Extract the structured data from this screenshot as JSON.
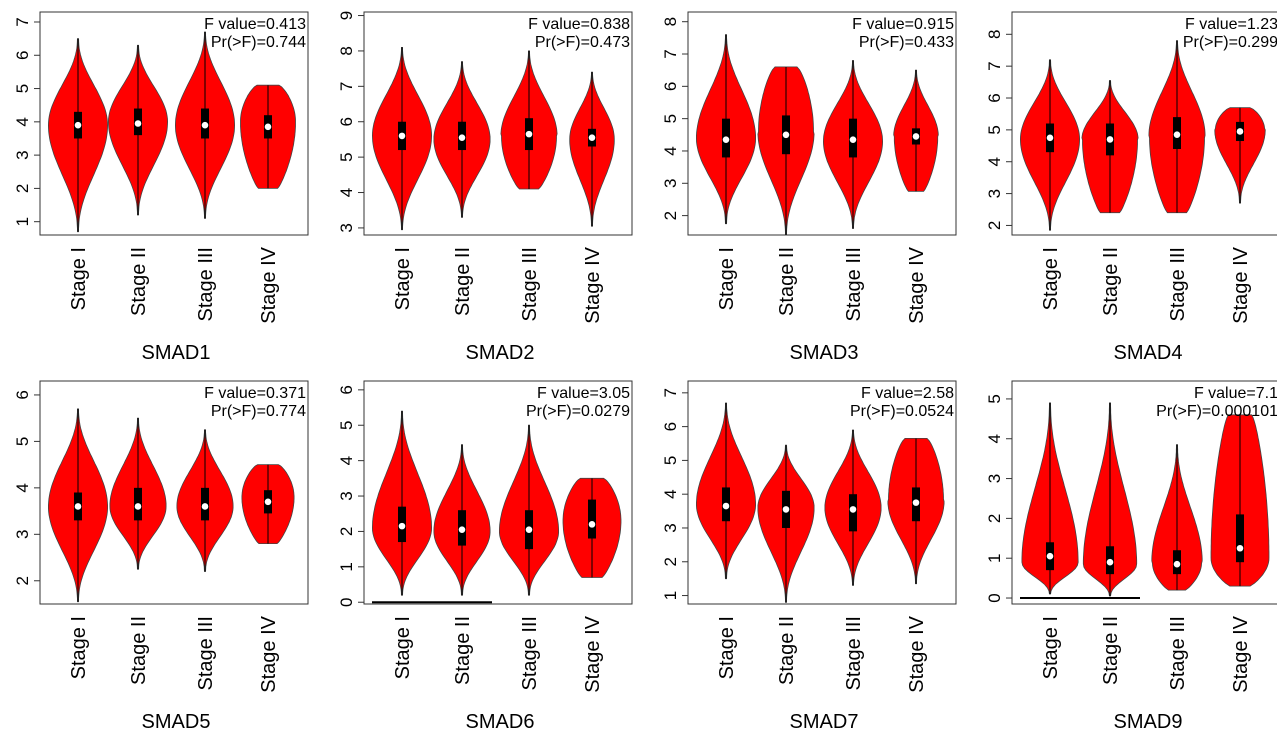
{
  "figure": {
    "panel_count": 8
  },
  "colors": {
    "violin_fill": "#ff0000",
    "violin_stroke": "#444444",
    "box": "#000000",
    "median": "#ffffff",
    "frame": "#333333"
  },
  "chart_data": [
    {
      "type": "violin",
      "title": "SMAD1",
      "categories": [
        "Stage I",
        "Stage II",
        "Stage III",
        "Stage IV"
      ],
      "ylim": [
        0.6,
        7.3
      ],
      "yticks": [
        1,
        2,
        3,
        4,
        5,
        6,
        7
      ],
      "stats": [
        "F value=0.413",
        "Pr(>F)=0.744"
      ],
      "series": [
        {
          "min": 0.7,
          "q1": 3.5,
          "median": 3.9,
          "q3": 4.3,
          "max": 6.5,
          "mode": 3.9,
          "peak": 1.0
        },
        {
          "min": 1.2,
          "q1": 3.6,
          "median": 3.95,
          "q3": 4.4,
          "max": 6.3,
          "mode": 4.0,
          "peak": 1.0
        },
        {
          "min": 1.1,
          "q1": 3.5,
          "median": 3.9,
          "q3": 4.4,
          "max": 6.7,
          "mode": 3.9,
          "peak": 1.0
        },
        {
          "min": 2.0,
          "q1": 3.5,
          "median": 3.85,
          "q3": 4.2,
          "max": 5.1,
          "mode": 4.0,
          "peak": 0.95,
          "flat_top": true,
          "flat_bottom": true
        }
      ]
    },
    {
      "type": "violin",
      "title": "SMAD2",
      "categories": [
        "Stage I",
        "Stage II",
        "Stage III",
        "Stage IV"
      ],
      "ylim": [
        2.8,
        9.1
      ],
      "yticks": [
        3,
        4,
        5,
        6,
        7,
        8,
        9
      ],
      "stats": [
        "F value=0.838",
        "Pr(>F)=0.473"
      ],
      "series": [
        {
          "min": 2.95,
          "q1": 5.2,
          "median": 5.6,
          "q3": 6.0,
          "max": 8.1,
          "mode": 5.6,
          "peak": 1.0
        },
        {
          "min": 3.3,
          "q1": 5.2,
          "median": 5.55,
          "q3": 6.0,
          "max": 7.7,
          "mode": 5.5,
          "peak": 0.95
        },
        {
          "min": 4.1,
          "q1": 5.2,
          "median": 5.65,
          "q3": 6.1,
          "max": 8.0,
          "mode": 5.6,
          "peak": 0.95,
          "flat_bottom": true
        },
        {
          "min": 3.05,
          "q1": 5.3,
          "median": 5.55,
          "q3": 5.8,
          "max": 7.4,
          "mode": 5.5,
          "peak": 0.75
        }
      ]
    },
    {
      "type": "violin",
      "title": "SMAD3",
      "categories": [
        "Stage I",
        "Stage II",
        "Stage III",
        "Stage IV"
      ],
      "ylim": [
        1.4,
        8.3
      ],
      "yticks": [
        2,
        3,
        4,
        5,
        6,
        7,
        8
      ],
      "stats": [
        "F value=0.915",
        "Pr(>F)=0.433"
      ],
      "series": [
        {
          "min": 1.75,
          "q1": 3.8,
          "median": 4.35,
          "q3": 5.0,
          "max": 7.6,
          "mode": 4.4,
          "peak": 1.0
        },
        {
          "min": 1.4,
          "q1": 3.9,
          "median": 4.5,
          "q3": 5.1,
          "max": 6.6,
          "mode": 4.6,
          "peak": 0.95,
          "flat_top": true
        },
        {
          "min": 1.6,
          "q1": 3.8,
          "median": 4.35,
          "q3": 5.0,
          "max": 6.8,
          "mode": 4.3,
          "peak": 1.0
        },
        {
          "min": 2.75,
          "q1": 4.2,
          "median": 4.45,
          "q3": 4.7,
          "max": 6.5,
          "mode": 4.45,
          "peak": 0.75,
          "flat_bottom": true
        }
      ]
    },
    {
      "type": "violin",
      "title": "SMAD4",
      "categories": [
        "Stage I",
        "Stage II",
        "Stage III",
        "Stage IV"
      ],
      "ylim": [
        1.7,
        8.7
      ],
      "yticks": [
        2,
        3,
        4,
        5,
        6,
        7,
        8
      ],
      "stats": [
        "F value=1.23",
        "Pr(>F)=0.299"
      ],
      "series": [
        {
          "min": 1.85,
          "q1": 4.3,
          "median": 4.75,
          "q3": 5.2,
          "max": 7.2,
          "mode": 4.7,
          "peak": 1.0
        },
        {
          "min": 2.4,
          "q1": 4.2,
          "median": 4.7,
          "q3": 5.2,
          "max": 6.55,
          "mode": 4.7,
          "peak": 0.95,
          "flat_bottom": true
        },
        {
          "min": 2.4,
          "q1": 4.4,
          "median": 4.85,
          "q3": 5.4,
          "max": 7.8,
          "mode": 4.8,
          "peak": 0.95,
          "flat_bottom": true
        },
        {
          "min": 2.7,
          "q1": 4.65,
          "median": 4.95,
          "q3": 5.25,
          "max": 5.7,
          "mode": 5.0,
          "peak": 0.85,
          "flat_top": true
        }
      ]
    },
    {
      "type": "violin",
      "title": "SMAD5",
      "categories": [
        "Stage I",
        "Stage II",
        "Stage III",
        "Stage IV"
      ],
      "ylim": [
        1.5,
        6.3
      ],
      "yticks": [
        2,
        3,
        4,
        5,
        6
      ],
      "stats": [
        "F value=0.371",
        "Pr(>F)=0.774"
      ],
      "series": [
        {
          "min": 1.55,
          "q1": 3.3,
          "median": 3.6,
          "q3": 3.9,
          "max": 5.7,
          "mode": 3.6,
          "peak": 1.0
        },
        {
          "min": 2.25,
          "q1": 3.3,
          "median": 3.6,
          "q3": 4.0,
          "max": 5.5,
          "mode": 3.6,
          "peak": 0.95
        },
        {
          "min": 2.2,
          "q1": 3.3,
          "median": 3.6,
          "q3": 4.0,
          "max": 5.25,
          "mode": 3.6,
          "peak": 0.95
        },
        {
          "min": 2.8,
          "q1": 3.45,
          "median": 3.7,
          "q3": 3.95,
          "max": 4.5,
          "mode": 3.8,
          "peak": 0.9,
          "flat_top": true,
          "flat_bottom": true
        }
      ]
    },
    {
      "type": "violin",
      "title": "SMAD6",
      "categories": [
        "Stage I",
        "Stage II",
        "Stage III",
        "Stage IV"
      ],
      "ylim": [
        -0.05,
        6.25
      ],
      "yticks": [
        0,
        1,
        2,
        3,
        4,
        5,
        6
      ],
      "stats": [
        "F value=3.05",
        "Pr(>F)=0.0279"
      ],
      "series": [
        {
          "min": 0.2,
          "q1": 1.7,
          "median": 2.15,
          "q3": 2.7,
          "max": 5.4,
          "mode": 2.1,
          "peak": 1.0,
          "zero_line": true
        },
        {
          "min": 0.2,
          "q1": 1.6,
          "median": 2.05,
          "q3": 2.6,
          "max": 4.45,
          "mode": 2.0,
          "peak": 0.95,
          "zero_line": true
        },
        {
          "min": 0.2,
          "q1": 1.5,
          "median": 2.05,
          "q3": 2.6,
          "max": 5.0,
          "mode": 2.0,
          "peak": 1.0
        },
        {
          "min": 0.7,
          "q1": 1.8,
          "median": 2.2,
          "q3": 2.9,
          "max": 3.5,
          "mode": 2.3,
          "peak": 1.0,
          "flat_top": true,
          "flat_bottom": true
        }
      ]
    },
    {
      "type": "violin",
      "title": "SMAD7",
      "categories": [
        "Stage I",
        "Stage II",
        "Stage III",
        "Stage IV"
      ],
      "ylim": [
        0.75,
        7.35
      ],
      "yticks": [
        1,
        2,
        3,
        4,
        5,
        6,
        7
      ],
      "stats": [
        "F value=2.58",
        "Pr(>F)=0.0524"
      ],
      "series": [
        {
          "min": 1.5,
          "q1": 3.2,
          "median": 3.65,
          "q3": 4.2,
          "max": 6.7,
          "mode": 3.7,
          "peak": 1.0
        },
        {
          "min": 0.8,
          "q1": 3.0,
          "median": 3.55,
          "q3": 4.1,
          "max": 5.45,
          "mode": 3.6,
          "peak": 0.95
        },
        {
          "min": 1.3,
          "q1": 2.9,
          "median": 3.55,
          "q3": 4.0,
          "max": 5.9,
          "mode": 3.6,
          "peak": 0.95
        },
        {
          "min": 1.35,
          "q1": 3.2,
          "median": 3.75,
          "q3": 4.2,
          "max": 5.65,
          "mode": 3.8,
          "peak": 0.95,
          "flat_top": true
        }
      ]
    },
    {
      "type": "violin",
      "title": "SMAD9",
      "categories": [
        "Stage I",
        "Stage II",
        "Stage III",
        "Stage IV"
      ],
      "ylim": [
        -0.15,
        5.45
      ],
      "yticks": [
        0,
        1,
        2,
        3,
        4,
        5
      ],
      "stats": [
        "F value=7.1",
        "Pr(>F)=0.000101"
      ],
      "series": [
        {
          "min": 0.1,
          "q1": 0.7,
          "median": 1.05,
          "q3": 1.4,
          "max": 4.9,
          "mode": 0.9,
          "peak": 0.95,
          "zero_line": true
        },
        {
          "min": 0.05,
          "q1": 0.6,
          "median": 0.9,
          "q3": 1.3,
          "max": 4.9,
          "mode": 0.85,
          "peak": 0.9,
          "zero_line": true
        },
        {
          "min": 0.2,
          "q1": 0.6,
          "median": 0.85,
          "q3": 1.2,
          "max": 3.85,
          "mode": 0.9,
          "peak": 0.85,
          "flat_bottom": true
        },
        {
          "min": 0.3,
          "q1": 0.9,
          "median": 1.25,
          "q3": 2.1,
          "max": 4.6,
          "mode": 1.0,
          "peak": 1.0,
          "flat_top": true,
          "flat_bottom": true
        }
      ]
    }
  ]
}
